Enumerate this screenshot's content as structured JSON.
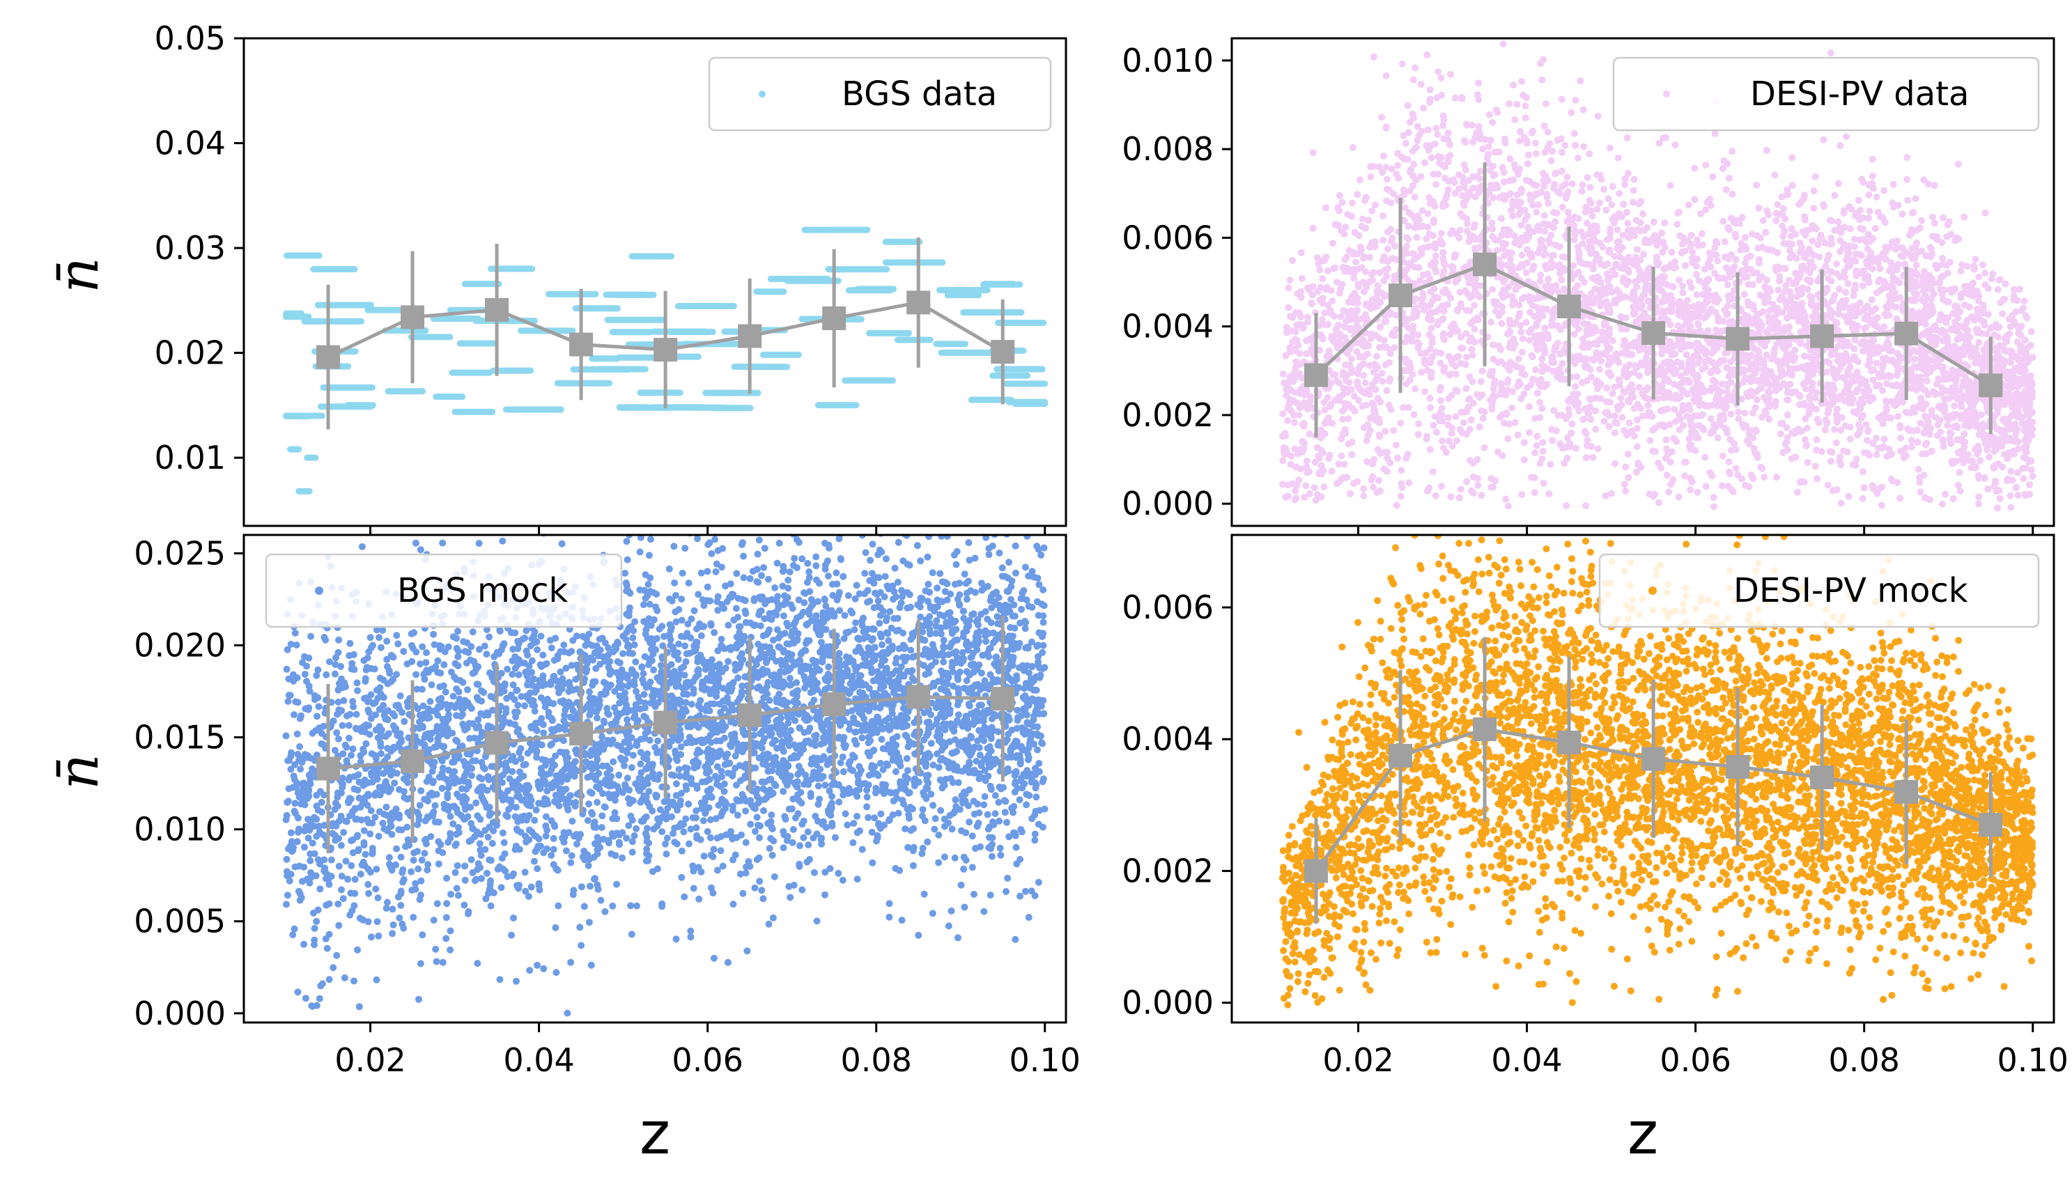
{
  "figure": {
    "shared_xlabel": "z",
    "shared_ylabel": "n̄"
  },
  "chart_data": [
    {
      "id": "bgs-data",
      "type": "scatter",
      "title": "",
      "legend": {
        "label": "BGS data",
        "placement": "top-right"
      },
      "xlabel": "",
      "ylabel": "n̄",
      "xlim": [
        0.005,
        0.1025
      ],
      "ylim": [
        0.0035,
        0.05
      ],
      "yticks": [
        0.01,
        0.02,
        0.03,
        0.04,
        0.05
      ],
      "yticklabels": [
        "0.01",
        "0.02",
        "0.03",
        "0.04",
        "0.05"
      ],
      "xticks": [
        0.02,
        0.04,
        0.06,
        0.08,
        0.1
      ],
      "xticklabels": [],
      "scatter_color": "#8ed8ef",
      "scatter_style": "stripes",
      "scatter_z_range": [
        0.01,
        0.1
      ],
      "binned": {
        "color": "#a0a0a0",
        "z": [
          0.015,
          0.025,
          0.035,
          0.045,
          0.055,
          0.065,
          0.075,
          0.085,
          0.095
        ],
        "mean": [
          0.0196,
          0.0234,
          0.0241,
          0.0208,
          0.0203,
          0.0216,
          0.0233,
          0.0248,
          0.0201
        ],
        "err": [
          0.0069,
          0.0063,
          0.0063,
          0.0053,
          0.0056,
          0.0055,
          0.0066,
          0.0062,
          0.005
        ]
      }
    },
    {
      "id": "desi-pv-data",
      "type": "scatter",
      "title": "",
      "legend": {
        "label": "DESI-PV data",
        "placement": "top-right"
      },
      "xlabel": "",
      "ylabel": "",
      "xlim": [
        0.005,
        0.1025
      ],
      "ylim": [
        -0.0005,
        0.0105
      ],
      "yticks": [
        0.0,
        0.002,
        0.004,
        0.006,
        0.008,
        0.01
      ],
      "yticklabels": [
        "0.000",
        "0.002",
        "0.004",
        "0.006",
        "0.008",
        "0.010"
      ],
      "xticks": [
        0.02,
        0.04,
        0.06,
        0.08,
        0.1
      ],
      "xticklabels": [],
      "scatter_color": "#f2cdf5",
      "scatter_style": "cloud",
      "scatter_z_range": [
        0.011,
        0.1
      ],
      "binned": {
        "color": "#a0a0a0",
        "z": [
          0.015,
          0.025,
          0.035,
          0.045,
          0.055,
          0.065,
          0.075,
          0.085,
          0.095
        ],
        "mean": [
          0.0029,
          0.0047,
          0.0054,
          0.00445,
          0.00385,
          0.00372,
          0.00378,
          0.00384,
          0.00267
        ],
        "err": [
          0.0014,
          0.0022,
          0.0023,
          0.0018,
          0.0015,
          0.0015,
          0.0015,
          0.0015,
          0.0011
        ]
      }
    },
    {
      "id": "bgs-mock",
      "type": "scatter",
      "title": "",
      "legend": {
        "label": "BGS mock",
        "placement": "top-left"
      },
      "xlabel": "z",
      "ylabel": "n̄",
      "xlim": [
        0.005,
        0.1025
      ],
      "ylim": [
        -0.0005,
        0.026
      ],
      "yticks": [
        0.0,
        0.005,
        0.01,
        0.015,
        0.02,
        0.025
      ],
      "yticklabels": [
        "0.000",
        "0.005",
        "0.010",
        "0.015",
        "0.020",
        "0.025"
      ],
      "xticks": [
        0.02,
        0.04,
        0.06,
        0.08,
        0.1
      ],
      "xticklabels": [
        "0.02",
        "0.04",
        "0.06",
        "0.08",
        "0.10"
      ],
      "scatter_color": "#6d9be6",
      "scatter_style": "cloud",
      "scatter_z_range": [
        0.01,
        0.1
      ],
      "binned": {
        "color": "#a0a0a0",
        "z": [
          0.015,
          0.025,
          0.035,
          0.045,
          0.055,
          0.065,
          0.075,
          0.085,
          0.095
        ],
        "mean": [
          0.0133,
          0.0137,
          0.0147,
          0.0152,
          0.0158,
          0.0162,
          0.0168,
          0.0172,
          0.0171
        ],
        "err": [
          0.0046,
          0.0044,
          0.0043,
          0.0043,
          0.0041,
          0.0042,
          0.0041,
          0.0042,
          0.0045
        ]
      }
    },
    {
      "id": "desi-pv-mock",
      "type": "scatter",
      "title": "",
      "legend": {
        "label": "DESI-PV mock",
        "placement": "top-right"
      },
      "xlabel": "z",
      "ylabel": "",
      "xlim": [
        0.005,
        0.1025
      ],
      "ylim": [
        -0.0003,
        0.0071
      ],
      "yticks": [
        0.0,
        0.002,
        0.004,
        0.006
      ],
      "yticklabels": [
        "0.000",
        "0.002",
        "0.004",
        "0.006"
      ],
      "xticks": [
        0.02,
        0.04,
        0.06,
        0.08,
        0.1
      ],
      "xticklabels": [
        "0.02",
        "0.04",
        "0.06",
        "0.08",
        "0.10"
      ],
      "scatter_color": "#f9a51a",
      "scatter_style": "cloud",
      "scatter_z_range": [
        0.011,
        0.1
      ],
      "binned": {
        "color": "#a0a0a0",
        "z": [
          0.015,
          0.025,
          0.035,
          0.045,
          0.055,
          0.065,
          0.075,
          0.085,
          0.095
        ],
        "mean": [
          0.002,
          0.00375,
          0.00415,
          0.00395,
          0.0037,
          0.00358,
          0.00342,
          0.0032,
          0.0027
        ],
        "err": [
          0.0008,
          0.0013,
          0.0014,
          0.0013,
          0.0012,
          0.0012,
          0.0011,
          0.0011,
          0.0008
        ]
      }
    }
  ]
}
